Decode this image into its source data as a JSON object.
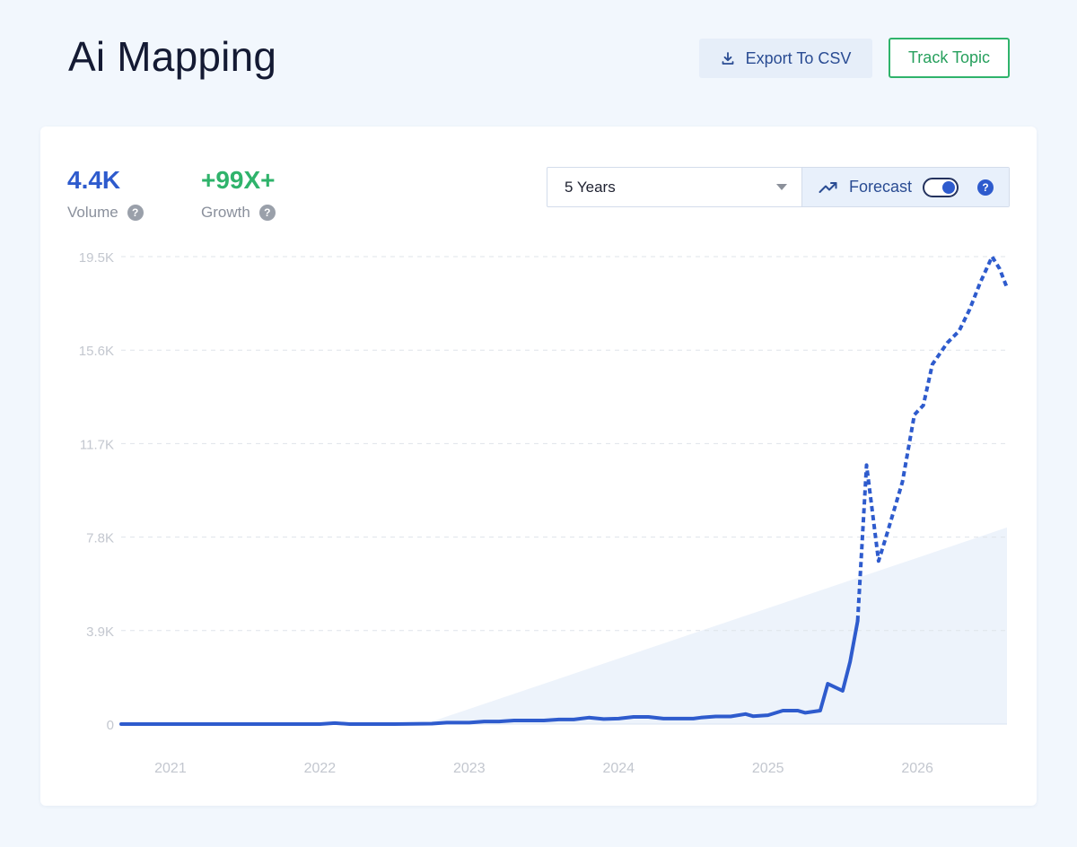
{
  "header": {
    "title": "Ai Mapping",
    "export_label": "Export To CSV",
    "track_label": "Track Topic"
  },
  "metrics": {
    "volume": {
      "value": "4.4K",
      "label": "Volume",
      "color": "#2e5bcd"
    },
    "growth": {
      "value": "+99X+",
      "label": "Growth",
      "color": "#2fb36b"
    }
  },
  "controls": {
    "range": "5 Years",
    "forecast_label": "Forecast",
    "forecast_on": true
  },
  "icons": {
    "export": "download-icon",
    "forecast": "trend-up-icon",
    "help": "help-icon",
    "dropdown": "caret-down-icon"
  },
  "chart_data": {
    "type": "line",
    "title": "",
    "xlabel": "",
    "ylabel": "",
    "x_ticks": [
      "2021",
      "2022",
      "2023",
      "2024",
      "2025",
      "2026"
    ],
    "x_tick_values": [
      2021.0,
      2022.0,
      2023.0,
      2024.0,
      2025.0,
      2026.0
    ],
    "y_ticks": [
      "0",
      "3.9K",
      "7.8K",
      "11.7K",
      "15.6K",
      "19.5K"
    ],
    "y_tick_values": [
      0,
      3900,
      7800,
      11700,
      15600,
      19500
    ],
    "xlim": [
      2020.67,
      2026.6
    ],
    "ylim": [
      0,
      19500
    ],
    "grid": true,
    "line_color": "#2e5bcd",
    "series": [
      {
        "style": "solid",
        "x": [
          2020.67,
          2021.0,
          2021.5,
          2022.0,
          2022.1,
          2022.2,
          2022.5,
          2022.75,
          2022.85,
          2023.0,
          2023.1,
          2023.2,
          2023.3,
          2023.5,
          2023.6,
          2023.7,
          2023.8,
          2023.9,
          2024.0,
          2024.1,
          2024.2,
          2024.3,
          2024.4,
          2024.5,
          2024.55,
          2024.65,
          2024.75,
          2024.85,
          2024.9,
          2025.0,
          2025.1,
          2025.2,
          2025.25,
          2025.35,
          2025.4,
          2025.5,
          2025.55,
          2025.6
        ],
        "y": [
          0,
          0,
          0,
          0,
          40,
          0,
          0,
          20,
          60,
          60,
          110,
          110,
          150,
          150,
          190,
          190,
          270,
          210,
          230,
          300,
          300,
          230,
          230,
          230,
          270,
          320,
          320,
          420,
          330,
          370,
          560,
          560,
          470,
          560,
          1680,
          1390,
          2600,
          4300
        ]
      },
      {
        "style": "dashed",
        "x": [
          2025.6,
          2025.66,
          2025.74,
          2025.79,
          2025.9,
          2025.98,
          2026.04,
          2026.1,
          2026.2,
          2026.28,
          2026.35,
          2026.42,
          2026.5,
          2026.55,
          2026.6
        ],
        "y": [
          4300,
          10800,
          6800,
          7800,
          10100,
          12900,
          13300,
          15000,
          15900,
          16400,
          17300,
          18400,
          19500,
          19000,
          18200
        ]
      }
    ],
    "trend_band": {
      "x": [
        2022.7,
        2026.6
      ],
      "y": [
        0,
        8200
      ],
      "color": "#edf3fb"
    }
  }
}
